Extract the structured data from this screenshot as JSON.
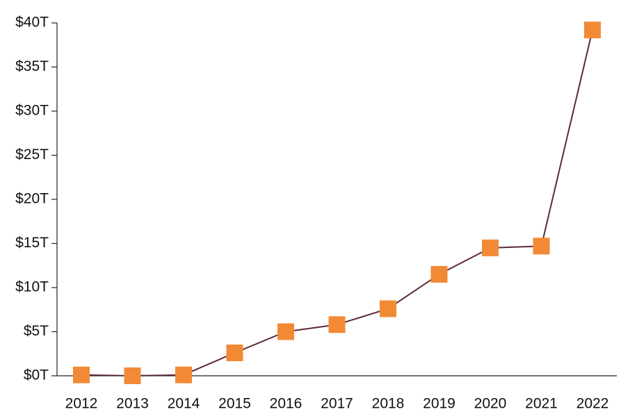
{
  "chart_data": {
    "type": "line",
    "categories": [
      "2012",
      "2013",
      "2014",
      "2015",
      "2016",
      "2017",
      "2018",
      "2019",
      "2020",
      "2021",
      "2022"
    ],
    "values": [
      0.1,
      0,
      0.1,
      2.6,
      5.0,
      5.8,
      7.6,
      11.5,
      14.5,
      14.7,
      39.2
    ],
    "line_color": "#5b2a36",
    "marker_color": "#f28a35",
    "ylim": [
      0,
      40
    ],
    "yticks": [
      {
        "value": 0,
        "label": "$0T"
      },
      {
        "value": 5,
        "label": "$5T"
      },
      {
        "value": 10,
        "label": "$10T"
      },
      {
        "value": 15,
        "label": "$15T"
      },
      {
        "value": 20,
        "label": "$20T"
      },
      {
        "value": 25,
        "label": "$25T"
      },
      {
        "value": 30,
        "label": "$30T"
      },
      {
        "value": 35,
        "label": "$35T"
      },
      {
        "value": 40,
        "label": "$40T"
      }
    ],
    "grid": false
  }
}
